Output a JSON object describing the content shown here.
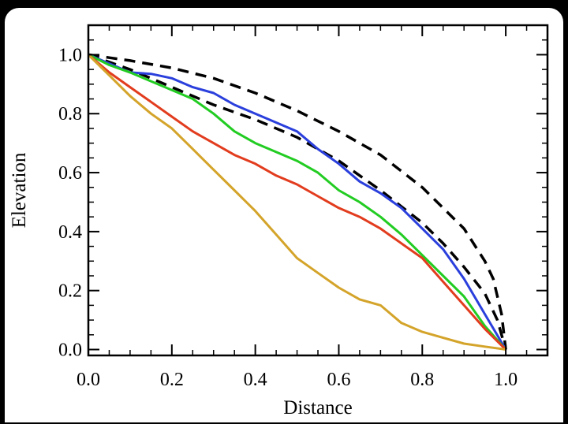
{
  "chart_data": {
    "type": "line",
    "xlabel": "Distance",
    "ylabel": "Elevation",
    "xlim": [
      0.0,
      1.1
    ],
    "ylim": [
      -0.02,
      1.1
    ],
    "xticks": [
      0.0,
      0.2,
      0.4,
      0.6,
      0.8,
      1.0
    ],
    "yticks": [
      0.0,
      0.2,
      0.4,
      0.6,
      0.8,
      1.0
    ],
    "xtick_labels": [
      "0.0",
      "0.2",
      "0.4",
      "0.6",
      "0.8",
      "1.0"
    ],
    "ytick_labels": [
      "0.0",
      "0.2",
      "0.4",
      "0.6",
      "0.8",
      "1.0"
    ],
    "grid": false,
    "legend": false,
    "series": [
      {
        "color": "#000000",
        "dash": true,
        "x": [
          0.0,
          0.05,
          0.1,
          0.2,
          0.3,
          0.4,
          0.5,
          0.6,
          0.7,
          0.8,
          0.85,
          0.9,
          0.95,
          0.97,
          0.99,
          1.0
        ],
        "y": [
          1.0,
          0.99,
          0.98,
          0.955,
          0.92,
          0.87,
          0.81,
          0.74,
          0.66,
          0.55,
          0.48,
          0.41,
          0.3,
          0.24,
          0.12,
          0.0
        ]
      },
      {
        "color": "#000000",
        "dash": true,
        "x": [
          0.0,
          0.1,
          0.2,
          0.3,
          0.4,
          0.5,
          0.6,
          0.7,
          0.8,
          0.85,
          0.9,
          0.95,
          0.98,
          1.0
        ],
        "y": [
          1.0,
          0.95,
          0.89,
          0.83,
          0.78,
          0.72,
          0.64,
          0.54,
          0.43,
          0.36,
          0.28,
          0.19,
          0.1,
          0.0
        ]
      },
      {
        "color": "#2a3fdc",
        "dash": false,
        "x": [
          0.0,
          0.05,
          0.1,
          0.15,
          0.2,
          0.25,
          0.3,
          0.35,
          0.4,
          0.45,
          0.5,
          0.55,
          0.6,
          0.65,
          0.7,
          0.75,
          0.8,
          0.85,
          0.9,
          0.95,
          1.0
        ],
        "y": [
          1.0,
          0.97,
          0.94,
          0.935,
          0.92,
          0.89,
          0.87,
          0.83,
          0.8,
          0.77,
          0.74,
          0.68,
          0.63,
          0.57,
          0.53,
          0.48,
          0.41,
          0.34,
          0.24,
          0.12,
          0.0
        ]
      },
      {
        "color": "#22cc22",
        "dash": false,
        "x": [
          0.0,
          0.05,
          0.1,
          0.15,
          0.2,
          0.25,
          0.3,
          0.35,
          0.4,
          0.45,
          0.5,
          0.55,
          0.6,
          0.65,
          0.7,
          0.75,
          0.8,
          0.85,
          0.9,
          0.95,
          1.0
        ],
        "y": [
          1.0,
          0.965,
          0.94,
          0.91,
          0.88,
          0.85,
          0.8,
          0.74,
          0.7,
          0.67,
          0.64,
          0.6,
          0.54,
          0.5,
          0.45,
          0.39,
          0.32,
          0.25,
          0.18,
          0.08,
          0.0
        ]
      },
      {
        "color": "#e23c1e",
        "dash": false,
        "x": [
          0.0,
          0.05,
          0.1,
          0.15,
          0.2,
          0.25,
          0.3,
          0.35,
          0.4,
          0.45,
          0.5,
          0.55,
          0.6,
          0.65,
          0.7,
          0.75,
          0.8,
          0.85,
          0.9,
          0.95,
          1.0
        ],
        "y": [
          1.0,
          0.94,
          0.89,
          0.84,
          0.79,
          0.74,
          0.7,
          0.66,
          0.63,
          0.59,
          0.56,
          0.52,
          0.48,
          0.45,
          0.41,
          0.36,
          0.31,
          0.23,
          0.15,
          0.07,
          0.0
        ]
      },
      {
        "color": "#d4a42a",
        "dash": false,
        "x": [
          0.0,
          0.05,
          0.1,
          0.15,
          0.2,
          0.25,
          0.3,
          0.35,
          0.4,
          0.45,
          0.5,
          0.55,
          0.6,
          0.65,
          0.7,
          0.75,
          0.8,
          0.85,
          0.9,
          0.95,
          1.0
        ],
        "y": [
          1.0,
          0.93,
          0.86,
          0.8,
          0.75,
          0.68,
          0.61,
          0.54,
          0.47,
          0.39,
          0.31,
          0.26,
          0.21,
          0.17,
          0.15,
          0.09,
          0.06,
          0.04,
          0.02,
          0.01,
          0.0
        ]
      }
    ]
  }
}
